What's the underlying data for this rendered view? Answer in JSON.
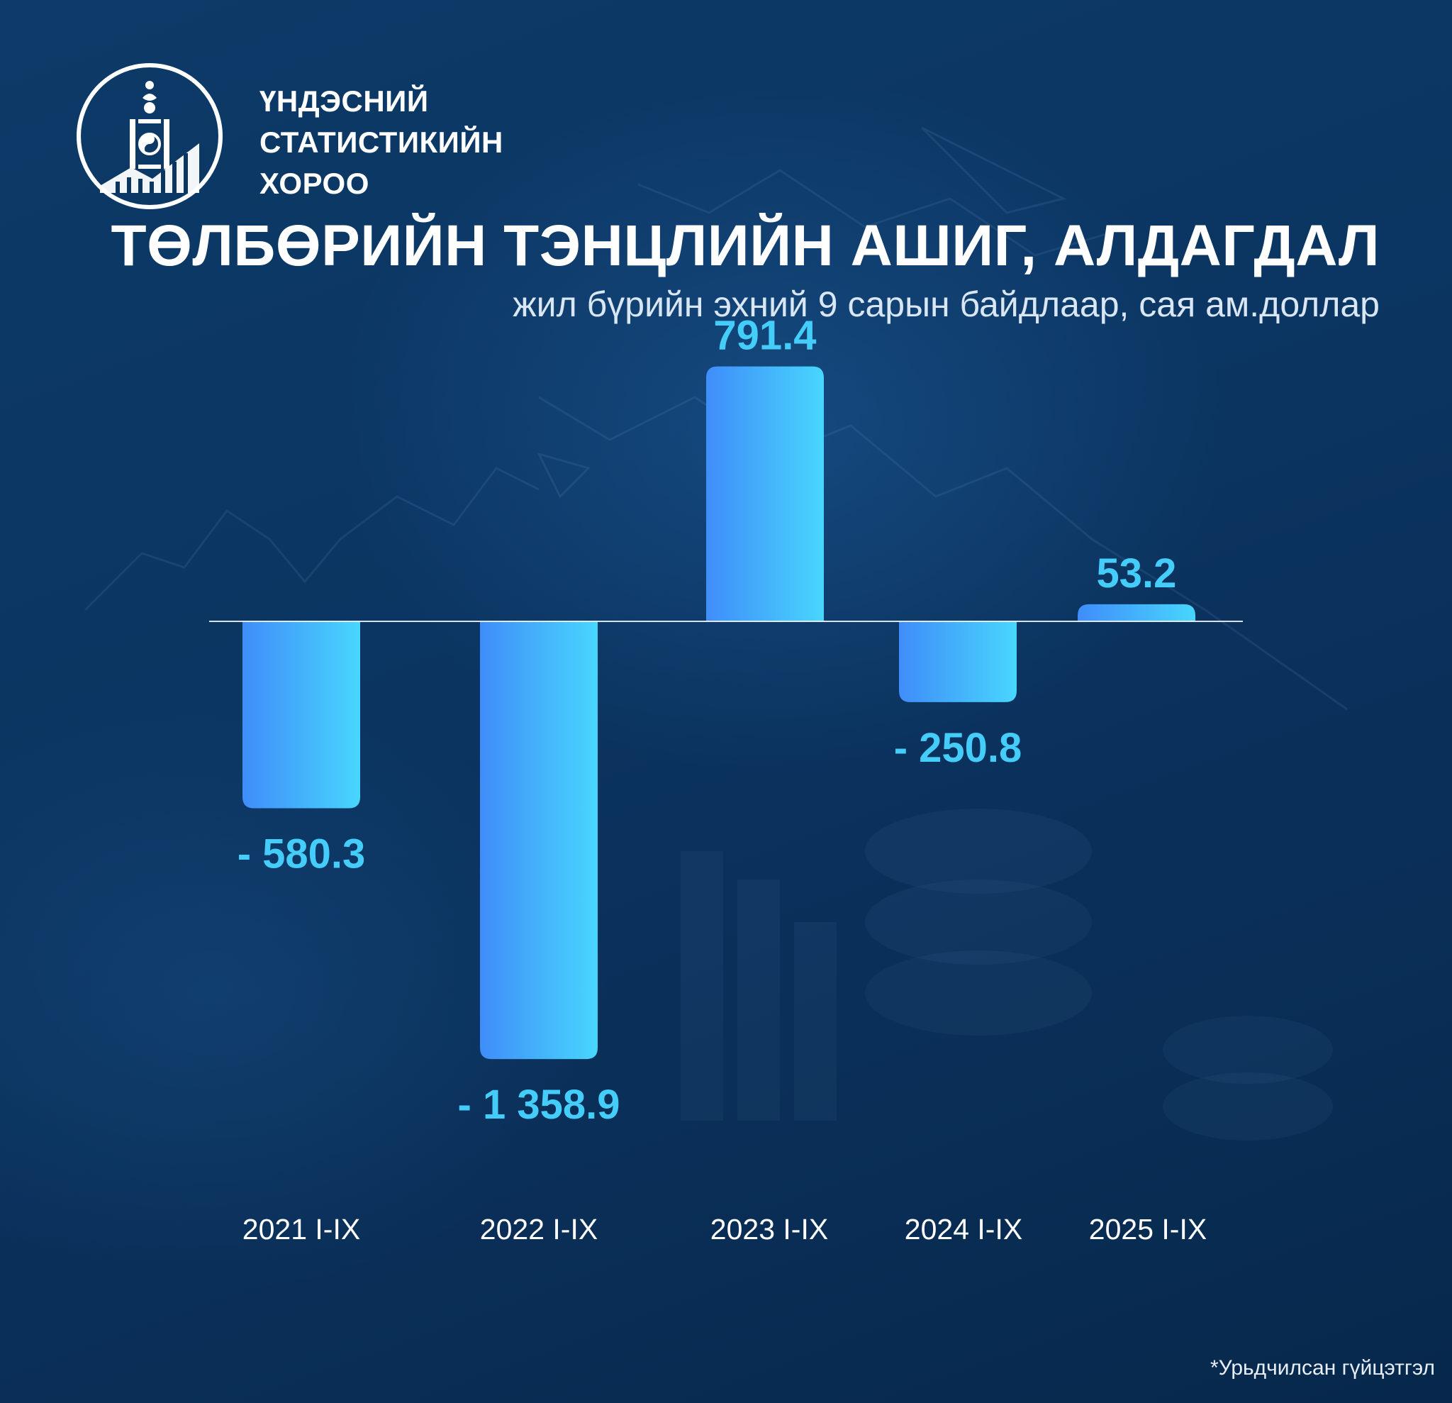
{
  "organization": {
    "name_lines": [
      "ҮНДЭСНИЙ",
      "СТАТИСТИКИЙН",
      "ХОРОО"
    ]
  },
  "header": {
    "title": "ТӨЛБӨРИЙН ТЭНЦЛИЙН АШИГ, АЛДАГДАЛ",
    "subtitle": "жил бүрийн эхний 9 сарын байдлаар, сая ам.доллар"
  },
  "footnote": "*Урьдчилсан гүйцэтгэл",
  "colors": {
    "bar_gradient_left": "#3f8df9",
    "bar_gradient_right": "#48d6fd",
    "value_label": "#45cdfa",
    "baseline": "#ffffff",
    "background": "#0b3562"
  },
  "chart_data": {
    "type": "bar",
    "title": "ТӨЛБӨРИЙН ТЭНЦЛИЙН АШИГ, АЛДАГДАЛ",
    "subtitle": "жил бүрийн эхний 9 сарын байдлаар, сая ам.доллар",
    "categories": [
      "2021 I-IX",
      "2022 I-IX",
      "2023 I-IX",
      "2024 I-IX",
      "2025 I-IX"
    ],
    "values": [
      -580.3,
      -1358.9,
      791.4,
      -250.8,
      53.2
    ],
    "value_labels": [
      "- 580.3",
      "- 1 358.9",
      "791.4",
      "- 250.8",
      "53.2"
    ],
    "ylim": [
      -1358.9,
      791.4
    ],
    "grid": false,
    "legend": "none"
  }
}
